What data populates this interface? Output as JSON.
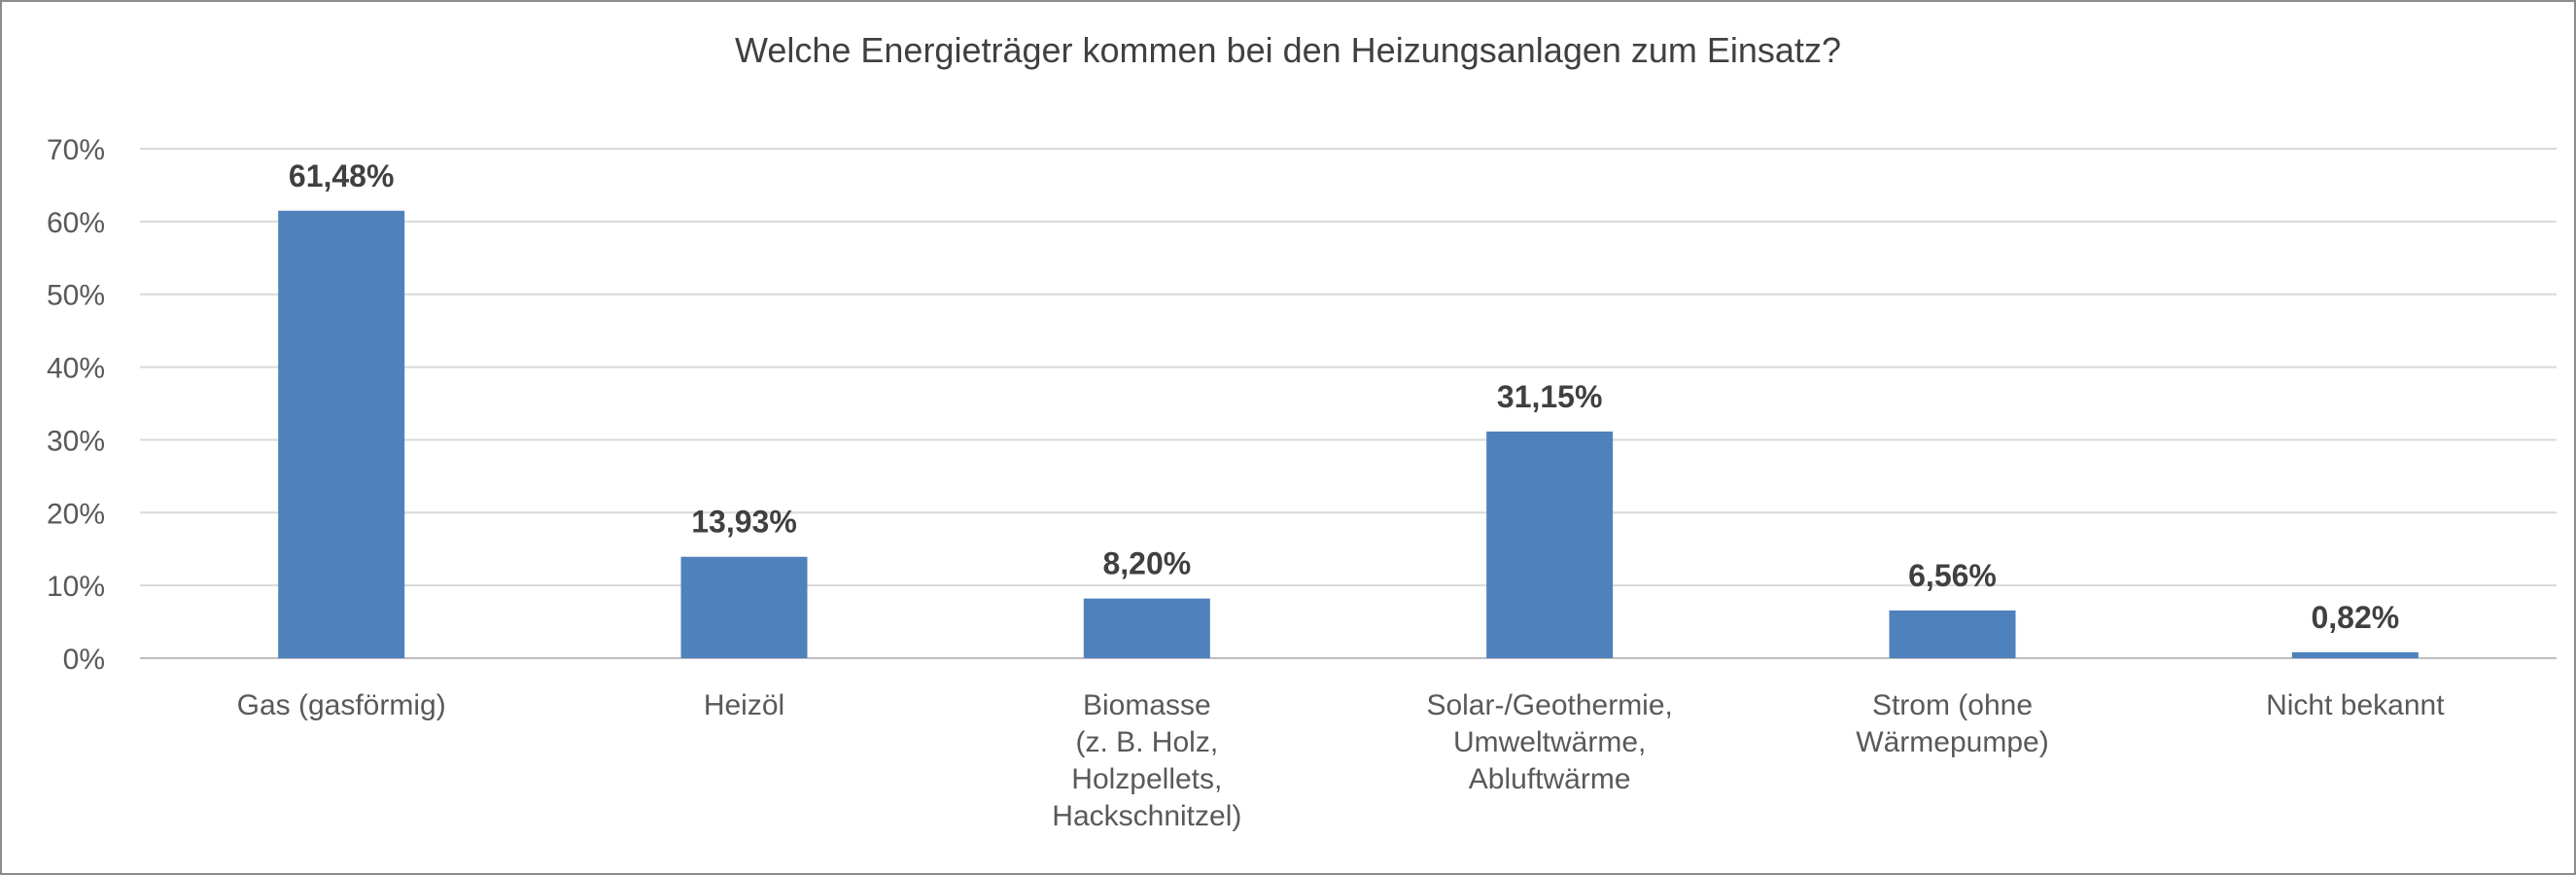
{
  "chart_data": {
    "type": "bar",
    "title": "Welche Energieträger kommen bei den Heizungsanlagen zum Einsatz?",
    "xlabel": "",
    "ylabel": "",
    "categories": [
      [
        "Gas (gasförmig)"
      ],
      [
        "Heizöl"
      ],
      [
        "Biomasse",
        "(z. B. Holz,",
        "Holzpellets,",
        "Hackschnitzel)"
      ],
      [
        "Solar-/Geothermie,",
        "Umweltwärme,",
        "Abluftwärme"
      ],
      [
        "Strom (ohne",
        "Wärmepumpe)"
      ],
      [
        "Nicht bekannt"
      ]
    ],
    "values": [
      61.48,
      13.93,
      8.2,
      31.15,
      6.56,
      0.82
    ],
    "data_labels": [
      "61,48%",
      "13,93%",
      "8,20%",
      "31,15%",
      "6,56%",
      "0,82%"
    ],
    "ylim": [
      0,
      70
    ],
    "yticks": [
      "0%",
      "10%",
      "20%",
      "30%",
      "40%",
      "50%",
      "60%",
      "70%"
    ],
    "grid": true,
    "legend": "none",
    "bar_color": "#4f81bd"
  }
}
